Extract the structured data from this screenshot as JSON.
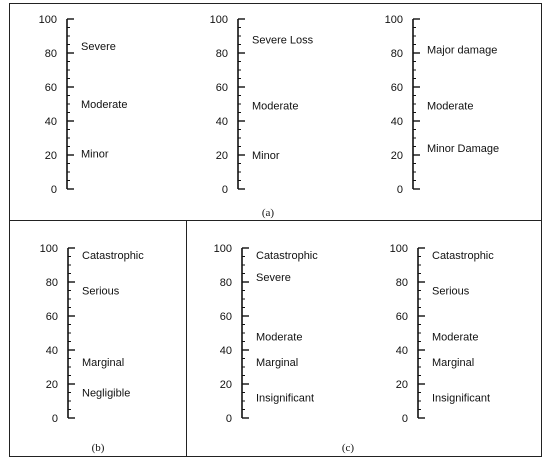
{
  "panels": [
    {
      "id": "a",
      "caption": "(a)",
      "scales": [
        {
          "ticks": [
            "100",
            "80",
            "60",
            "40",
            "20",
            "0"
          ],
          "labels": [
            {
              "text": "Severe",
              "value": 84
            },
            {
              "text": "Moderate",
              "value": 50
            },
            {
              "text": "Minor",
              "value": 21
            }
          ]
        },
        {
          "ticks": [
            "100",
            "80",
            "60",
            "40",
            "20",
            "0"
          ],
          "labels": [
            {
              "text": "Severe Loss",
              "value": 88
            },
            {
              "text": "Moderate",
              "value": 49
            },
            {
              "text": "Minor",
              "value": 20
            }
          ]
        },
        {
          "ticks": [
            "100",
            "80",
            "60",
            "40",
            "20",
            "0"
          ],
          "labels": [
            {
              "text": "Major damage",
              "value": 82
            },
            {
              "text": "Moderate",
              "value": 49
            },
            {
              "text": "Minor Damage",
              "value": 24
            }
          ]
        }
      ]
    },
    {
      "id": "b",
      "caption": "(b)",
      "scales": [
        {
          "ticks": [
            "100",
            "80",
            "60",
            "40",
            "20",
            "0"
          ],
          "labels": [
            {
              "text": "Catastrophic",
              "value": 96
            },
            {
              "text": "Serious",
              "value": 75
            },
            {
              "text": "Marginal",
              "value": 33
            },
            {
              "text": "Negligible",
              "value": 15
            }
          ]
        }
      ]
    },
    {
      "id": "c",
      "caption": "(c)",
      "scales": [
        {
          "ticks": [
            "100",
            "80",
            "60",
            "40",
            "20",
            "0"
          ],
          "labels": [
            {
              "text": "Catastrophic",
              "value": 96
            },
            {
              "text": "Severe",
              "value": 83
            },
            {
              "text": "Moderate",
              "value": 48
            },
            {
              "text": "Marginal",
              "value": 33
            },
            {
              "text": "Insignificant",
              "value": 12
            }
          ]
        },
        {
          "ticks": [
            "100",
            "80",
            "60",
            "40",
            "20",
            "0"
          ],
          "labels": [
            {
              "text": "Catastrophic",
              "value": 96
            },
            {
              "text": "Serious",
              "value": 75
            },
            {
              "text": "Moderate",
              "value": 48
            },
            {
              "text": "Marginal",
              "value": 33
            },
            {
              "text": "Insignificant",
              "value": 12
            }
          ]
        }
      ]
    }
  ]
}
